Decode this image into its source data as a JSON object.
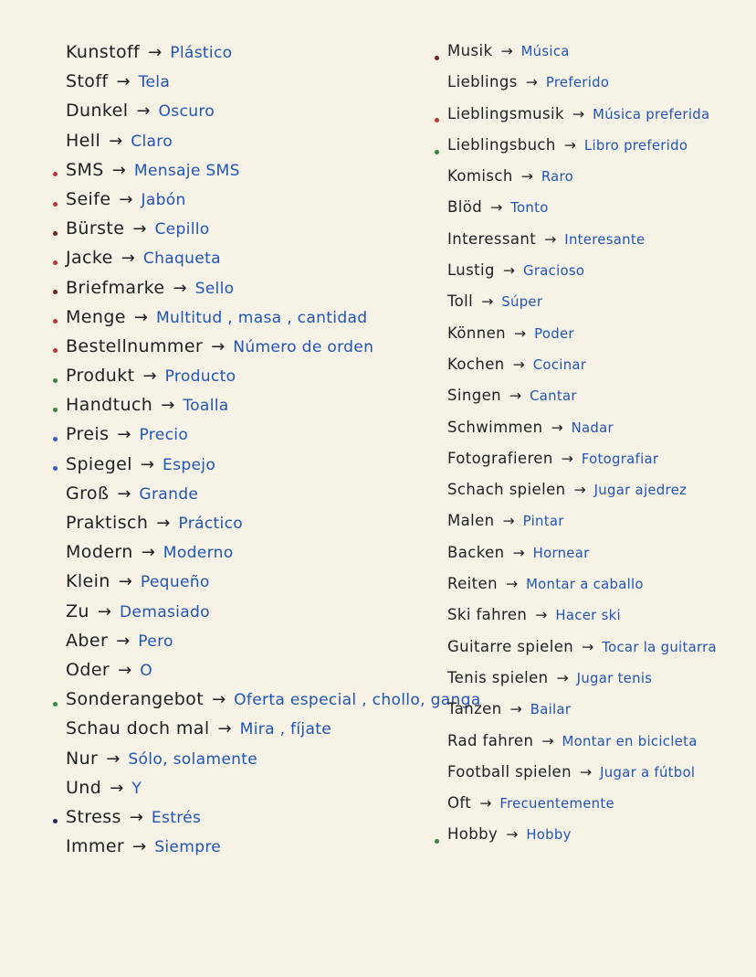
{
  "document_type": "handwritten-vocabulary-notes",
  "languages": {
    "source": "German",
    "target": "Spanish"
  },
  "arrow": "→",
  "colors": {
    "paper": "#f6f2e5",
    "ink": "#1f1f23",
    "translation_blue": "#2155b4",
    "red": "#b63434",
    "darkred": "#7e1d1d",
    "green": "#2e8b3d",
    "blue": "#2b5fc0",
    "navy": "#27275f"
  },
  "columns": [
    {
      "name": "left",
      "items": [
        {
          "de": "Kunstoff",
          "es": "Plástico",
          "bullet": null
        },
        {
          "de": "Stoff",
          "es": "Tela",
          "bullet": null
        },
        {
          "de": "Dunkel",
          "es": "Oscuro",
          "bullet": null
        },
        {
          "de": "Hell",
          "es": "Claro",
          "bullet": null
        },
        {
          "de": "SMS",
          "es": "Mensaje SMS",
          "bullet": "red"
        },
        {
          "de": "Seife",
          "es": "Jabón",
          "bullet": "red"
        },
        {
          "de": "Bürste",
          "es": "Cepillo",
          "bullet": "darkred"
        },
        {
          "de": "Jacke",
          "es": "Chaqueta",
          "bullet": "red"
        },
        {
          "de": "Briefmarke",
          "es": "Sello",
          "bullet": "darkred"
        },
        {
          "de": "Menge",
          "es": "Multitud , masa , cantidad",
          "bullet": "red"
        },
        {
          "de": "Bestellnummer",
          "es": "Número de orden",
          "bullet": "red"
        },
        {
          "de": "Produkt",
          "es": "Producto",
          "bullet": "green"
        },
        {
          "de": "Handtuch",
          "es": "Toalla",
          "bullet": "green"
        },
        {
          "de": "Preis",
          "es": "Precio",
          "bullet": "blue"
        },
        {
          "de": "Spiegel",
          "es": "Espejo",
          "bullet": "blue"
        },
        {
          "de": "Groß",
          "es": "Grande",
          "bullet": null
        },
        {
          "de": "Praktisch",
          "es": "Práctico",
          "bullet": null
        },
        {
          "de": "Modern",
          "es": "Moderno",
          "bullet": null
        },
        {
          "de": "Klein",
          "es": "Pequeño",
          "bullet": null
        },
        {
          "de": "Zu",
          "es": "Demasiado",
          "bullet": null
        },
        {
          "de": "Aber",
          "es": "Pero",
          "bullet": null
        },
        {
          "de": "Oder",
          "es": "O",
          "bullet": null
        },
        {
          "de": "Sonderangebot",
          "es": "Oferta especial , chollo, ganga",
          "bullet": "green"
        },
        {
          "de": "Schau doch mal",
          "es": "Mira , fíjate",
          "bullet": null
        },
        {
          "de": "Nur",
          "es": "Sólo, solamente",
          "bullet": null
        },
        {
          "de": "Und",
          "es": "Y",
          "bullet": null
        },
        {
          "de": "Stress",
          "es": "Estrés",
          "bullet": "navy"
        },
        {
          "de": "Immer",
          "es": "Siempre",
          "bullet": null
        }
      ]
    },
    {
      "name": "right",
      "items": [
        {
          "de": "Musik",
          "es": "Música",
          "bullet": "darkred"
        },
        {
          "de": "Lieblings",
          "es": "Preferido",
          "bullet": null
        },
        {
          "de": "Lieblingsmusik",
          "es": "Música preferida",
          "bullet": "red"
        },
        {
          "de": "Lieblingsbuch",
          "es": "Libro preferido",
          "bullet": "green"
        },
        {
          "de": "Komisch",
          "es": "Raro",
          "bullet": null
        },
        {
          "de": "Blöd",
          "es": "Tonto",
          "bullet": null
        },
        {
          "de": "Interessant",
          "es": "Interesante",
          "bullet": null
        },
        {
          "de": "Lustig",
          "es": "Gracioso",
          "bullet": null
        },
        {
          "de": "Toll",
          "es": "Súper",
          "bullet": null
        },
        {
          "de": "Können",
          "es": "Poder",
          "bullet": null
        },
        {
          "de": "Kochen",
          "es": "Cocinar",
          "bullet": null
        },
        {
          "de": "Singen",
          "es": "Cantar",
          "bullet": null
        },
        {
          "de": "Schwimmen",
          "es": "Nadar",
          "bullet": null
        },
        {
          "de": "Fotografieren",
          "es": "Fotografiar",
          "bullet": null
        },
        {
          "de": "Schach spielen",
          "es": "Jugar ajedrez",
          "bullet": null
        },
        {
          "de": "Malen",
          "es": "Pintar",
          "bullet": null
        },
        {
          "de": "Backen",
          "es": "Hornear",
          "bullet": null
        },
        {
          "de": "Reiten",
          "es": "Montar a caballo",
          "bullet": null
        },
        {
          "de": "Ski fahren",
          "es": "Hacer ski",
          "bullet": null
        },
        {
          "de": "Guitarre spielen",
          "es": "Tocar la guitarra",
          "bullet": null
        },
        {
          "de": "Tenis spielen",
          "es": "Jugar tenis",
          "bullet": null
        },
        {
          "de": "Tanzen",
          "es": "Bailar",
          "bullet": null
        },
        {
          "de": "Rad fahren",
          "es": "Montar en bicicleta",
          "bullet": null
        },
        {
          "de": "Football spielen",
          "es": "Jugar a fútbol",
          "bullet": null
        },
        {
          "de": "Oft",
          "es": "Frecuentemente",
          "bullet": null
        },
        {
          "de": "Hobby",
          "es": "Hobby",
          "bullet": "green"
        }
      ]
    }
  ]
}
